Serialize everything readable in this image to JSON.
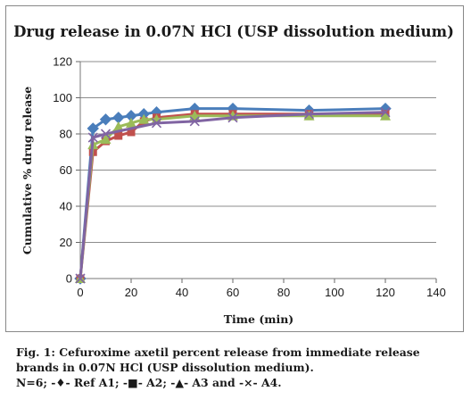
{
  "chart_data": {
    "type": "line",
    "title": "Drug release in  0.07N HCl (USP dissolution  medium)",
    "xlabel": "Time (min)",
    "ylabel": "Cumulative % drug release",
    "xlim": [
      0,
      140
    ],
    "ylim": [
      0,
      120
    ],
    "xticks": [
      0,
      20,
      40,
      60,
      80,
      100,
      120,
      140
    ],
    "yticks": [
      0,
      20,
      40,
      60,
      80,
      100,
      120
    ],
    "grid": "horizontal",
    "legend": "none",
    "series": [
      {
        "color": "#4a7ebb",
        "marker": "diamond",
        "x": [
          0,
          5,
          10,
          15,
          20,
          25,
          30,
          45,
          60,
          90,
          120
        ],
        "y": [
          0,
          83,
          88,
          89,
          90,
          91,
          92,
          94,
          94,
          93,
          94
        ]
      },
      {
        "color": "#c0504d",
        "marker": "square",
        "x": [
          0,
          5,
          10,
          15,
          20,
          25,
          30,
          45,
          60,
          90,
          120
        ],
        "y": [
          0,
          70,
          76,
          79,
          81,
          87,
          89,
          91,
          91,
          91,
          91
        ]
      },
      {
        "color": "#9bbb59",
        "marker": "triangle",
        "x": [
          0,
          5,
          10,
          15,
          20,
          25,
          30,
          45,
          60,
          90,
          120
        ],
        "y": [
          0,
          74,
          77,
          84,
          86,
          88,
          88,
          90,
          90,
          90,
          90
        ]
      },
      {
        "color": "#8064a2",
        "marker": "x",
        "x": [
          0,
          5,
          10,
          30,
          45,
          60,
          90,
          120
        ],
        "y": [
          0,
          78,
          80,
          86,
          87,
          89,
          91,
          92
        ]
      }
    ]
  },
  "caption": {
    "line1": "Fig. 1: Cefuroxime axetil percent release from immediate release",
    "line2": "brands in 0.07N HCl (USP dissolution medium).",
    "line3": "N=6; -♦- Ref A1; -■- A2; -▲- A3 and -×- A4."
  }
}
